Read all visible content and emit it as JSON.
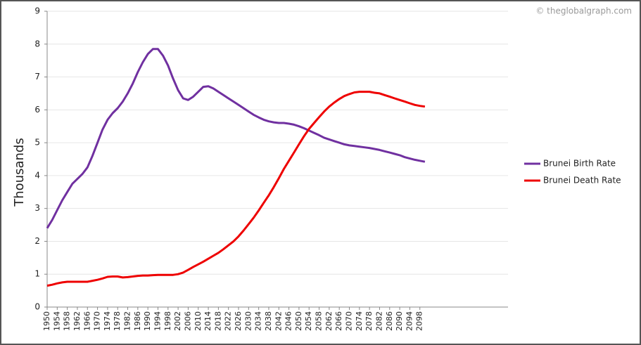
{
  "chart_data": {
    "type": "line",
    "watermark": "© theglobalgraph.com",
    "y_label": "Thousands",
    "x": [
      1950,
      1952,
      1954,
      1956,
      1958,
      1960,
      1962,
      1964,
      1966,
      1968,
      1970,
      1972,
      1974,
      1976,
      1978,
      1980,
      1982,
      1984,
      1986,
      1988,
      1990,
      1992,
      1994,
      1996,
      1998,
      2000,
      2002,
      2004,
      2006,
      2008,
      2010,
      2012,
      2014,
      2016,
      2018,
      2020,
      2022,
      2024,
      2026,
      2028,
      2030,
      2032,
      2034,
      2036,
      2038,
      2040,
      2042,
      2044,
      2046,
      2048,
      2050,
      2052,
      2054,
      2056,
      2058,
      2060,
      2062,
      2064,
      2066,
      2068,
      2070,
      2072,
      2074,
      2076,
      2078,
      2080,
      2082,
      2084,
      2086,
      2088,
      2090,
      2092,
      2094,
      2096,
      2098,
      2100
    ],
    "series": [
      {
        "name": "Brunei Birth Rate",
        "color": "#7030a0",
        "values": [
          2.4,
          2.65,
          2.95,
          3.25,
          3.5,
          3.75,
          3.9,
          4.05,
          4.25,
          4.6,
          5.0,
          5.4,
          5.7,
          5.9,
          6.05,
          6.25,
          6.5,
          6.8,
          7.15,
          7.45,
          7.7,
          7.85,
          7.85,
          7.65,
          7.35,
          6.95,
          6.6,
          6.35,
          6.3,
          6.4,
          6.55,
          6.7,
          6.72,
          6.65,
          6.55,
          6.45,
          6.35,
          6.25,
          6.15,
          6.05,
          5.95,
          5.85,
          5.77,
          5.7,
          5.65,
          5.62,
          5.6,
          5.6,
          5.58,
          5.55,
          5.5,
          5.44,
          5.37,
          5.3,
          5.23,
          5.15,
          5.1,
          5.05,
          5.0,
          4.95,
          4.92,
          4.9,
          4.88,
          4.86,
          4.84,
          4.81,
          4.78,
          4.74,
          4.7,
          4.66,
          4.62,
          4.56,
          4.52,
          4.48,
          4.45,
          4.42
        ]
      },
      {
        "name": "Brunei Death Rate",
        "color": "#ee0000",
        "values": [
          0.65,
          0.68,
          0.72,
          0.75,
          0.77,
          0.77,
          0.77,
          0.77,
          0.77,
          0.8,
          0.83,
          0.87,
          0.92,
          0.93,
          0.93,
          0.9,
          0.91,
          0.93,
          0.95,
          0.96,
          0.96,
          0.97,
          0.98,
          0.98,
          0.98,
          0.98,
          1.0,
          1.05,
          1.13,
          1.22,
          1.3,
          1.38,
          1.47,
          1.56,
          1.65,
          1.76,
          1.88,
          2.0,
          2.15,
          2.33,
          2.52,
          2.72,
          2.94,
          3.17,
          3.4,
          3.65,
          3.92,
          4.2,
          4.45,
          4.7,
          4.95,
          5.2,
          5.42,
          5.6,
          5.78,
          5.95,
          6.1,
          6.22,
          6.33,
          6.42,
          6.48,
          6.53,
          6.55,
          6.55,
          6.55,
          6.52,
          6.5,
          6.45,
          6.4,
          6.35,
          6.3,
          6.25,
          6.2,
          6.15,
          6.12,
          6.1
        ]
      }
    ],
    "xlim": [
      1950,
      2133
    ],
    "xticks": [
      1950,
      1954,
      1958,
      1962,
      1966,
      1970,
      1974,
      1978,
      1982,
      1986,
      1990,
      1994,
      1998,
      2002,
      2006,
      2010,
      2014,
      2018,
      2022,
      2026,
      2030,
      2034,
      2038,
      2042,
      2046,
      2050,
      2054,
      2058,
      2062,
      2066,
      2070,
      2074,
      2078,
      2082,
      2086,
      2090,
      2094,
      2098
    ],
    "ylim": [
      0,
      9
    ],
    "yticks": [
      0,
      1,
      2,
      3,
      4,
      5,
      6,
      7,
      8,
      9
    ],
    "grid": true,
    "legend": "right"
  }
}
